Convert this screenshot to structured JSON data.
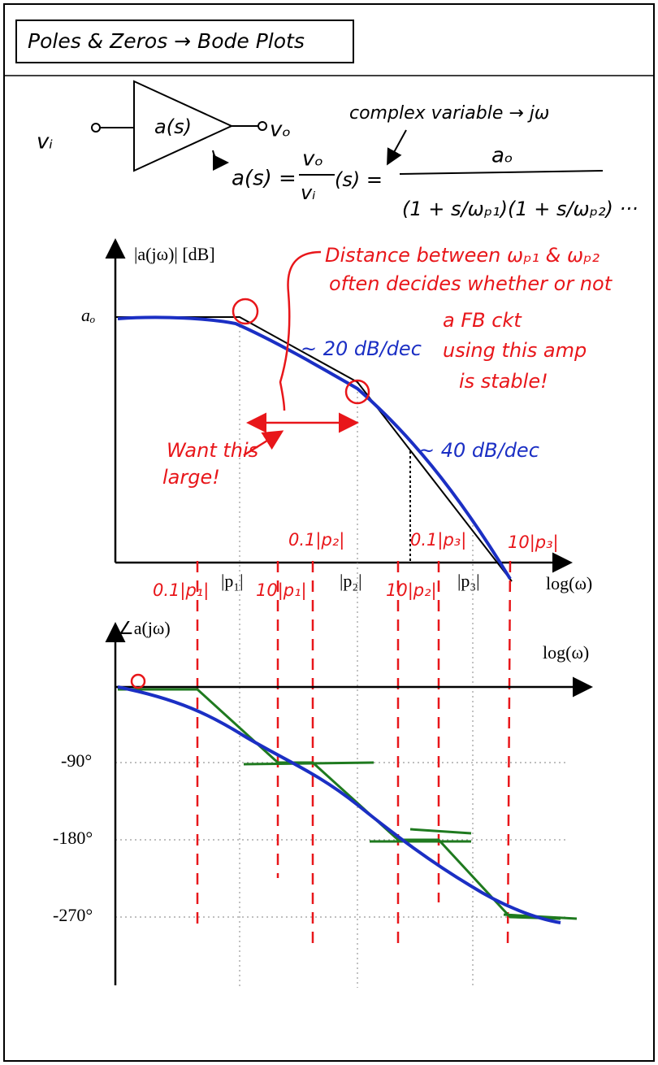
{
  "header": {
    "title": "Poles & Zeros → Bode Plots"
  },
  "amplifier": {
    "input": "vᵢ",
    "output": "vₒ",
    "block": "a(s)",
    "note": "complex variable → jω"
  },
  "equation": {
    "lhs": "a(s) =",
    "numerator": "vₒ",
    "denominator": "vᵢ",
    "rhs_start": "(s) =",
    "fraction_top": "aₒ",
    "fraction_bottom": "(1 + s/ωₚ₁)(1 + s/ωₚ₂) ···"
  },
  "magnitude_plot": {
    "y_label": "|a(jω)| [dB]",
    "dc_gain": "aₒ",
    "x_label": "log(ω)",
    "poles": [
      "|p₁|",
      "|p₂|",
      "|p₃|"
    ],
    "slope_1": "~ 20 dB/dec",
    "slope_2": "~ 40 dB/dec"
  },
  "decade_marks": {
    "p1_low": "0.1|p₁|",
    "p1_high": "10|p₁|",
    "p2_low": "0.1|p₂|",
    "p2_high": "10|p₂|",
    "p3_low": "0.1|p₃|",
    "p3_high": "10|p₃|"
  },
  "annotation": {
    "lines": [
      "Distance between ωₚ₁ & ωₚ₂",
      "often decides whether or not",
      "a FB ckt",
      "using this amp",
      "is stable!"
    ],
    "want": [
      "Want this",
      "large!"
    ]
  },
  "phase_plot": {
    "y_label": "∠a(jω)",
    "x_label": "log(ω)",
    "levels": [
      "-90°",
      "-180°",
      "-270°"
    ]
  }
}
